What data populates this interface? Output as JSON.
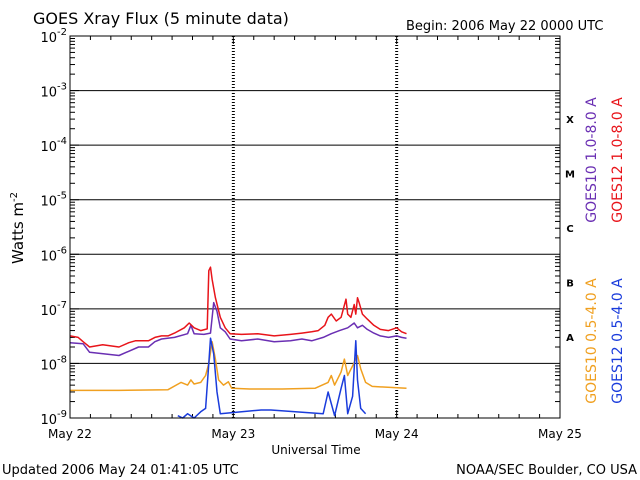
{
  "chart_data": {
    "type": "line",
    "title": "GOES Xray Flux (5 minute data)",
    "begin_label": "Begin:  2006 May 22 0000 UTC",
    "xlabel": "Universal Time",
    "ylabel": "Watts m",
    "ylabel_sup": "-2",
    "x_ticks": [
      "May 22",
      "May 23",
      "May 24",
      "May 25"
    ],
    "x_range_days": [
      0,
      3
    ],
    "y_scale": "log",
    "ylim": [
      1e-09,
      0.01
    ],
    "y_ticks": [
      {
        "base": "10",
        "exp": "-2"
      },
      {
        "base": "10",
        "exp": "-3"
      },
      {
        "base": "10",
        "exp": "-4"
      },
      {
        "base": "10",
        "exp": "-5"
      },
      {
        "base": "10",
        "exp": "-6"
      },
      {
        "base": "10",
        "exp": "-7"
      },
      {
        "base": "10",
        "exp": "-8"
      },
      {
        "base": "10",
        "exp": "-9"
      }
    ],
    "flare_classes": [
      "X",
      "M",
      "C",
      "B",
      "A"
    ],
    "grid": "horizontal lines at each decade; dashed vertical lines at day boundaries",
    "legend_placement": "right, rotated",
    "colors": {
      "goes10_long": "#6a2fb3",
      "goes12_long": "#e8141a",
      "goes10_short": "#f0a020",
      "goes12_short": "#1a3cdc"
    },
    "series": [
      {
        "name": "GOES10 1.0-8.0 A",
        "color_key": "goes10_long",
        "points": [
          [
            0.0,
            2.4e-08
          ],
          [
            0.08,
            2.3e-08
          ],
          [
            0.12,
            1.6e-08
          ],
          [
            0.3,
            1.4e-08
          ],
          [
            0.42,
            2e-08
          ],
          [
            0.48,
            2e-08
          ],
          [
            0.52,
            2.5e-08
          ],
          [
            0.56,
            2.8e-08
          ],
          [
            0.64,
            3e-08
          ],
          [
            0.72,
            3.5e-08
          ],
          [
            0.74,
            5e-08
          ],
          [
            0.76,
            3.5e-08
          ],
          [
            0.82,
            3.4e-08
          ],
          [
            0.86,
            3.6e-08
          ],
          [
            0.88,
            1.3e-07
          ],
          [
            0.9,
            9e-08
          ],
          [
            0.92,
            4.5e-08
          ],
          [
            0.95,
            3.8e-08
          ],
          [
            0.98,
            2.8e-08
          ],
          [
            1.05,
            2.6e-08
          ],
          [
            1.15,
            2.8e-08
          ],
          [
            1.25,
            2.5e-08
          ],
          [
            1.35,
            2.6e-08
          ],
          [
            1.42,
            2.8e-08
          ],
          [
            1.48,
            2.6e-08
          ],
          [
            1.55,
            3e-08
          ],
          [
            1.6,
            3.5e-08
          ],
          [
            1.65,
            4e-08
          ],
          [
            1.7,
            4.5e-08
          ],
          [
            1.74,
            5.5e-08
          ],
          [
            1.76,
            4.5e-08
          ],
          [
            1.79,
            5e-08
          ],
          [
            1.82,
            4.2e-08
          ],
          [
            1.86,
            3.6e-08
          ],
          [
            1.9,
            3.2e-08
          ],
          [
            1.95,
            3e-08
          ],
          [
            2.0,
            3.2e-08
          ],
          [
            2.03,
            3e-08
          ],
          [
            2.06,
            2.9e-08
          ]
        ]
      },
      {
        "name": "GOES12 1.0-8.0 A",
        "color_key": "goes12_long",
        "points": [
          [
            0.0,
            3.2e-08
          ],
          [
            0.05,
            3e-08
          ],
          [
            0.08,
            2.5e-08
          ],
          [
            0.12,
            2e-08
          ],
          [
            0.2,
            2.2e-08
          ],
          [
            0.3,
            2e-08
          ],
          [
            0.36,
            2.4e-08
          ],
          [
            0.4,
            2.6e-08
          ],
          [
            0.48,
            2.6e-08
          ],
          [
            0.52,
            3e-08
          ],
          [
            0.56,
            3.2e-08
          ],
          [
            0.6,
            3.2e-08
          ],
          [
            0.64,
            3.6e-08
          ],
          [
            0.7,
            4.5e-08
          ],
          [
            0.73,
            5.5e-08
          ],
          [
            0.76,
            4.5e-08
          ],
          [
            0.8,
            4e-08
          ],
          [
            0.84,
            4.3e-08
          ],
          [
            0.85,
            5e-07
          ],
          [
            0.86,
            5.8e-07
          ],
          [
            0.87,
            3.5e-07
          ],
          [
            0.89,
            1.6e-07
          ],
          [
            0.92,
            7e-08
          ],
          [
            0.95,
            4.5e-08
          ],
          [
            0.98,
            3.5e-08
          ],
          [
            1.05,
            3.4e-08
          ],
          [
            1.15,
            3.5e-08
          ],
          [
            1.25,
            3.2e-08
          ],
          [
            1.35,
            3.4e-08
          ],
          [
            1.42,
            3.6e-08
          ],
          [
            1.48,
            3.8e-08
          ],
          [
            1.52,
            4e-08
          ],
          [
            1.56,
            5e-08
          ],
          [
            1.58,
            7e-08
          ],
          [
            1.6,
            8e-08
          ],
          [
            1.63,
            6e-08
          ],
          [
            1.66,
            7e-08
          ],
          [
            1.69,
            1.5e-07
          ],
          [
            1.7,
            8e-08
          ],
          [
            1.72,
            7e-08
          ],
          [
            1.74,
            1.2e-07
          ],
          [
            1.75,
            8e-08
          ],
          [
            1.76,
            1.6e-07
          ],
          [
            1.77,
            1.3e-07
          ],
          [
            1.79,
            8e-08
          ],
          [
            1.82,
            6.5e-08
          ],
          [
            1.86,
            5e-08
          ],
          [
            1.9,
            4.2e-08
          ],
          [
            1.95,
            4e-08
          ],
          [
            2.0,
            4.5e-08
          ],
          [
            2.03,
            3.8e-08
          ],
          [
            2.06,
            3.5e-08
          ]
        ]
      },
      {
        "name": "GOES10 0.5-4.0 A",
        "color_key": "goes10_short",
        "points": [
          [
            0.0,
            3.2e-09
          ],
          [
            0.3,
            3.2e-09
          ],
          [
            0.6,
            3.3e-09
          ],
          [
            0.68,
            4.5e-09
          ],
          [
            0.72,
            4e-09
          ],
          [
            0.74,
            5e-09
          ],
          [
            0.76,
            4.2e-09
          ],
          [
            0.8,
            4.5e-09
          ],
          [
            0.83,
            6e-09
          ],
          [
            0.85,
            1e-08
          ],
          [
            0.87,
            2.5e-08
          ],
          [
            0.89,
            1.2e-08
          ],
          [
            0.91,
            5e-09
          ],
          [
            0.94,
            4e-09
          ],
          [
            0.97,
            4.6e-09
          ],
          [
            0.99,
            3.5e-09
          ],
          [
            1.1,
            3.4e-09
          ],
          [
            1.3,
            3.4e-09
          ],
          [
            1.5,
            3.5e-09
          ],
          [
            1.58,
            4.5e-09
          ],
          [
            1.6,
            6e-09
          ],
          [
            1.62,
            4e-09
          ],
          [
            1.66,
            7e-09
          ],
          [
            1.68,
            1.2e-08
          ],
          [
            1.7,
            6e-09
          ],
          [
            1.73,
            9e-09
          ],
          [
            1.76,
            1.4e-08
          ],
          [
            1.78,
            8e-09
          ],
          [
            1.81,
            4.5e-09
          ],
          [
            1.85,
            3.8e-09
          ],
          [
            2.06,
            3.5e-09
          ]
        ]
      },
      {
        "name": "GOES12 0.5-4.0 A",
        "color_key": "goes12_short",
        "points": [
          [
            0.66,
            1.1e-09
          ],
          [
            0.69,
            1e-09
          ],
          [
            0.72,
            1.2e-09
          ],
          [
            0.76,
            1e-09
          ],
          [
            0.8,
            1.3e-09
          ],
          [
            0.83,
            1.5e-09
          ],
          [
            0.85,
            1e-08
          ],
          [
            0.86,
            2.9e-08
          ],
          [
            0.88,
            1.5e-08
          ],
          [
            0.9,
            3e-09
          ],
          [
            0.92,
            1.2e-09
          ],
          [
            1.17,
            1.4e-09
          ],
          [
            1.23,
            1.4e-09
          ],
          [
            1.55,
            1.2e-09
          ],
          [
            1.58,
            3e-09
          ],
          [
            1.62,
            1.1e-09
          ],
          [
            1.66,
            3.5e-09
          ],
          [
            1.68,
            6e-09
          ],
          [
            1.7,
            1.2e-09
          ],
          [
            1.73,
            2.5e-09
          ],
          [
            1.75,
            2.6e-08
          ],
          [
            1.76,
            5e-09
          ],
          [
            1.78,
            1.5e-09
          ],
          [
            1.81,
            1.2e-09
          ]
        ]
      }
    ]
  },
  "footer": {
    "updated": "Updated 2006 May 24 01:41:05 UTC",
    "source": "NOAA/SEC Boulder, CO USA"
  }
}
